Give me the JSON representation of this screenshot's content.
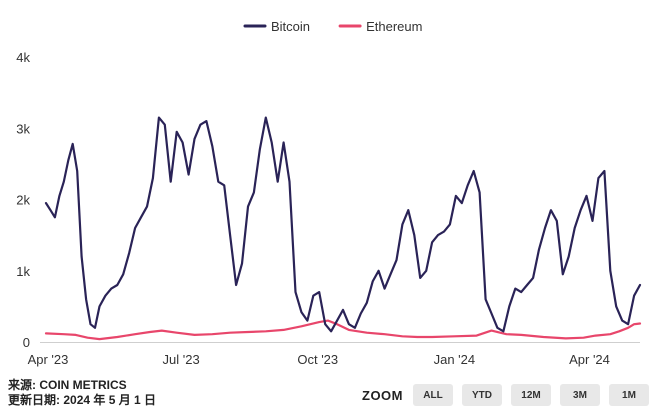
{
  "chart_data": {
    "type": "line",
    "title": "",
    "xlabel": "",
    "ylabel": "",
    "ylim": [
      0,
      4000
    ],
    "y_ticks": [
      0,
      1000,
      2000,
      3000,
      4000
    ],
    "y_tick_labels": [
      "0",
      "1k",
      "2k",
      "3k",
      "4k"
    ],
    "x_range_days": [
      0,
      400
    ],
    "x_ticks": [
      {
        "day": 0,
        "label": "Apr '23"
      },
      {
        "day": 91,
        "label": "Jul '23"
      },
      {
        "day": 183,
        "label": "Oct '23"
      },
      {
        "day": 275,
        "label": "Jan '24"
      },
      {
        "day": 366,
        "label": "Apr '24"
      }
    ],
    "grid": false,
    "legend_position": "top-center",
    "series": [
      {
        "name": "Bitcoin",
        "color": "#2a2357",
        "x": [
          0,
          3,
          6,
          9,
          12,
          15,
          18,
          21,
          24,
          27,
          30,
          33,
          36,
          40,
          44,
          48,
          52,
          56,
          60,
          64,
          68,
          72,
          76,
          80,
          84,
          88,
          92,
          96,
          100,
          104,
          108,
          112,
          116,
          120,
          124,
          128,
          132,
          136,
          140,
          144,
          148,
          152,
          156,
          160,
          164,
          168,
          172,
          176,
          180,
          184,
          188,
          192,
          196,
          200,
          204,
          208,
          212,
          216,
          220,
          224,
          228,
          232,
          236,
          240,
          244,
          248,
          252,
          256,
          260,
          264,
          268,
          272,
          276,
          280,
          284,
          288,
          292,
          296,
          300,
          304,
          308,
          312,
          316,
          320,
          324,
          328,
          332,
          336,
          340,
          344,
          348,
          352,
          356,
          360,
          364,
          368,
          372,
          376,
          380,
          384,
          388,
          392,
          396,
          400
        ],
        "y": [
          1950,
          1850,
          1750,
          2050,
          2250,
          2550,
          2780,
          2400,
          1200,
          600,
          250,
          200,
          500,
          650,
          750,
          800,
          950,
          1250,
          1600,
          1750,
          1900,
          2300,
          3150,
          3050,
          2250,
          2950,
          2800,
          2350,
          2850,
          3050,
          3100,
          2750,
          2250,
          2200,
          1500,
          800,
          1100,
          1900,
          2100,
          2700,
          3150,
          2800,
          2250,
          2800,
          2250,
          700,
          420,
          300,
          650,
          700,
          250,
          150,
          300,
          450,
          250,
          200,
          400,
          550,
          850,
          1000,
          750,
          950,
          1150,
          1650,
          1850,
          1500,
          900,
          1000,
          1400,
          1500,
          1550,
          1650,
          2050,
          1950,
          2200,
          2400,
          2100,
          600,
          400,
          200,
          150,
          500,
          750,
          700,
          800,
          900,
          1300,
          1600,
          1850,
          1700,
          950,
          1200,
          1600,
          1850,
          2050,
          1700,
          2300,
          2400,
          1000,
          500,
          300,
          250,
          650,
          800
        ]
      },
      {
        "name": "Ethereum",
        "color": "#e8466b",
        "x": [
          0,
          12,
          20,
          28,
          36,
          48,
          60,
          70,
          78,
          88,
          100,
          112,
          124,
          136,
          148,
          160,
          172,
          184,
          190,
          196,
          204,
          216,
          228,
          240,
          250,
          260,
          275,
          290,
          300,
          310,
          320,
          335,
          350,
          362,
          370,
          380,
          386,
          392,
          396,
          400
        ],
        "y": [
          120,
          110,
          100,
          60,
          40,
          70,
          110,
          140,
          160,
          130,
          100,
          110,
          130,
          140,
          150,
          170,
          220,
          280,
          300,
          250,
          170,
          130,
          110,
          80,
          70,
          70,
          80,
          90,
          160,
          110,
          100,
          70,
          50,
          60,
          90,
          110,
          150,
          200,
          250,
          260
        ]
      }
    ]
  },
  "source": {
    "label": "来源:",
    "name": "COIN METRICS",
    "updated_label": "更新日期:",
    "updated_date": "2024 年 5 月 1 日"
  },
  "zoom": {
    "label": "ZOOM",
    "buttons": [
      "ALL",
      "YTD",
      "12M",
      "3M",
      "1M"
    ]
  }
}
